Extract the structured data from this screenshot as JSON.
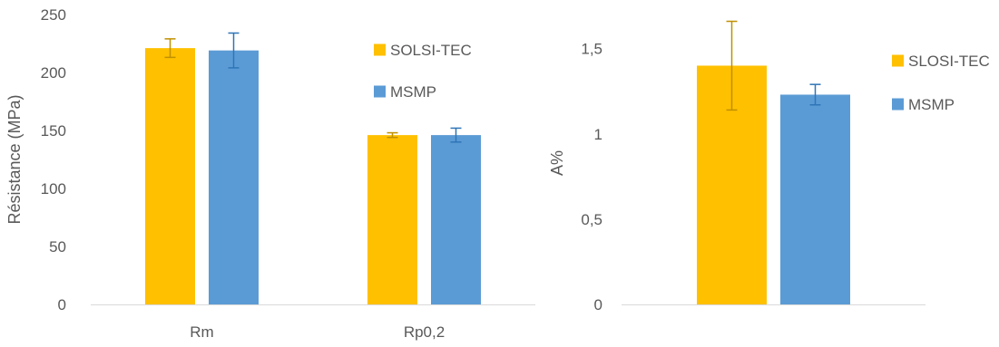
{
  "colors": {
    "series_a": "#FFC000",
    "series_b": "#5B9BD5",
    "axis": "#D9D9D9",
    "text": "#595959",
    "error_a": "#BF9000",
    "error_b": "#2E75B6"
  },
  "chart_data": [
    {
      "type": "bar",
      "categories": [
        "Rm",
        "Rp0,2"
      ],
      "series": [
        {
          "name": "SOLSI-TEC",
          "values": [
            221,
            146
          ],
          "error": [
            8,
            2
          ]
        },
        {
          "name": "MSMP",
          "values": [
            219,
            146
          ],
          "error": [
            15,
            6
          ]
        }
      ],
      "title": "",
      "xlabel": "",
      "ylabel": "Résistance (MPa)",
      "ylim": [
        0,
        250
      ],
      "yticks": [
        0,
        50,
        100,
        150,
        200,
        250
      ],
      "ytick_labels": [
        "0",
        "50",
        "100",
        "150",
        "200",
        "250"
      ],
      "grid": false,
      "legend": "right"
    },
    {
      "type": "bar",
      "categories": [
        ""
      ],
      "series": [
        {
          "name": "SLOSI-TEC",
          "values": [
            1.4
          ],
          "error": [
            0.26
          ]
        },
        {
          "name": "MSMP",
          "values": [
            1.23
          ],
          "error": [
            0.06
          ]
        }
      ],
      "title": "",
      "xlabel": "",
      "ylabel": "A%",
      "ylim": [
        0,
        1.7
      ],
      "yticks": [
        0,
        0.5,
        1,
        1.5
      ],
      "ytick_labels": [
        "0",
        "0,5",
        "1",
        "1,5"
      ],
      "grid": false,
      "legend": "right"
    }
  ]
}
